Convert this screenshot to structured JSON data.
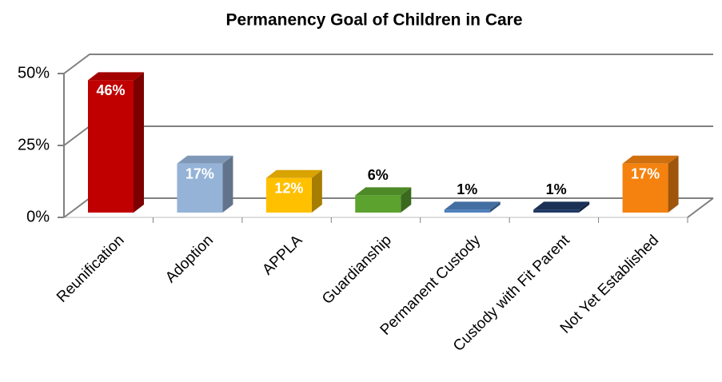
{
  "chart_data": {
    "type": "bar3d",
    "title": "Permanency Goal of Children in Care",
    "categories": [
      "Reunification",
      "Adoption",
      "APPLA",
      "Guardianship",
      "Permanent Custody",
      "Custody with Fit Parent",
      "Not Yet Established"
    ],
    "values": [
      46,
      17,
      12,
      6,
      1,
      1,
      17
    ],
    "value_labels": [
      "46%",
      "17%",
      "12%",
      "6%",
      "1%",
      "1%",
      "17%"
    ],
    "colors": [
      "#c00000",
      "#95b3d7",
      "#ffc000",
      "#5ba22e",
      "#4f81bd",
      "#1f3864",
      "#f5820f"
    ],
    "ylim": [
      0,
      50
    ],
    "yticks": [
      {
        "value": 0,
        "label": "0%"
      },
      {
        "value": 25,
        "label": "25%"
      },
      {
        "value": 50,
        "label": "50%"
      }
    ],
    "grid": true
  }
}
